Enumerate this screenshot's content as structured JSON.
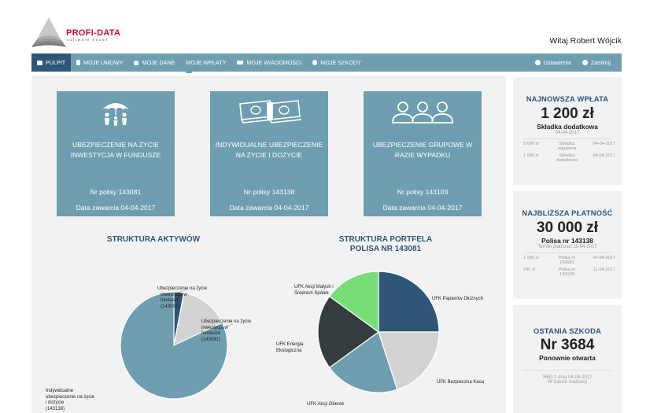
{
  "brand": {
    "name": "PROFI-DATA",
    "tagline": "software house"
  },
  "header": {
    "welcome": "Witaj Robert Wójcik"
  },
  "nav": {
    "items": [
      {
        "label": "PULPIT",
        "icon": "monitor-icon",
        "active": true
      },
      {
        "label": "MOJE UMOWY",
        "icon": "document-icon"
      },
      {
        "label": "MOJE DANE",
        "icon": "user-icon"
      },
      {
        "label": "MOJE WPŁATY",
        "icon": "credit-card-icon"
      },
      {
        "label": "MOJE WIADOMOŚCI",
        "icon": "envelope-icon"
      },
      {
        "label": "MOJE SZKODY",
        "icon": "wheelchair-icon"
      }
    ],
    "settings": "Ustawienia",
    "logout": "Zamknij"
  },
  "cards": [
    {
      "title": "UBEZPIECZENIE NA ŻYCIE INWESTYCJA W FUNDUSZE",
      "policy": "Nr polisy 143081",
      "date": "Data zawarcia 04-04-2017",
      "icon": "family-umbrella-icon"
    },
    {
      "title": "INDYWIDUALNE UBEZPIECZENIE NA ŻYCIE I DOŻYCIE",
      "policy": "Nr polisy 143138",
      "date": "Data zawarcia 04-04-2017",
      "icon": "money-stack-icon"
    },
    {
      "title": "UBEZPIECZENIE GRUPOWE W RAZIE WYPADKU",
      "policy": "Nr polisy 143103",
      "date": "Data zawarcia 04-04-2017",
      "icon": "group-people-icon"
    }
  ],
  "charts": {
    "assets_title": "STRUKTURA AKTYWÓW",
    "portfolio_title_1": "STRUKTURA PORTFELA",
    "portfolio_title_2": "POLISA NR 143081",
    "assets_labels": {
      "a": [
        "Ubezpieczenie na życie",
        "inwestycja w",
        "funduszE",
        "(143081)"
      ],
      "b": [
        "Ubezpieczenie na życie",
        "inwestycja w",
        "fundusze",
        "(143081)"
      ],
      "c": [
        "Indywidualne",
        "ubezpieczenie na życie",
        "i dożycie",
        "(143138)"
      ]
    },
    "portfolio_labels": {
      "small": [
        "UFK Akcji Małych i",
        "Średnich Spółek"
      ],
      "bonds": "UFK Papierów Dłużnych",
      "energy": [
        "UFK Energia",
        "Ekologiczna"
      ],
      "cash": "UFK Bezpieczna Kasa",
      "oberek": "UFK Akcji Oberek"
    }
  },
  "chart_data": [
    {
      "type": "pie",
      "title": "STRUKTURA AKTYWÓW",
      "labels": [
        "Ubezpieczenie na życie inwestycja w funduszE (143081)",
        "Ubezpieczenie na życie inwestycja w fundusze (143081)",
        "Indywidualne ubezpieczenie na życie i dożycie (143138)"
      ],
      "values": [
        3,
        15,
        82
      ],
      "colors": [
        "#2e5677",
        "#d3d3d3",
        "#6e9eb0"
      ]
    },
    {
      "type": "pie",
      "title": "STRUKTURA PORTFELA POLISA NR 143081",
      "labels": [
        "UFK Papierów Dłużnych",
        "UFK Bezpieczna Kasa",
        "UFK Akcji Oberek",
        "UFK Energia Ekologiczna",
        "UFK Akcji Małych i Średnich Spółek"
      ],
      "values": [
        25,
        20,
        20,
        20,
        15
      ],
      "colors": [
        "#2e5677",
        "#d3d3d3",
        "#6e9eb0",
        "#343c3e",
        "#77dd77"
      ]
    }
  ],
  "latest_payment": {
    "title": "NAJNOWSZA WPŁATA",
    "amount": "1 200 zł",
    "type": "Składka dodatkowa",
    "date": "04-04-2017",
    "rows": [
      {
        "amount": "5 600 zł",
        "type": "Składka regularna",
        "date": "04-04-2017"
      },
      {
        "amount": "1 000 zł",
        "type": "Składka dodatkowa",
        "date": "04-04-2017"
      }
    ]
  },
  "next_payment": {
    "title": "NAJBLIŻSZA PŁATNOŚĆ",
    "amount": "30 000 zł",
    "policy": "Polisa nr 143138",
    "due": "Termin płatności 11-04-2017",
    "rows": [
      {
        "amount": "1 000 zł",
        "policy": "Polisa nr 143081",
        "date": "04-04-2017"
      },
      {
        "amount": "240 zł",
        "policy": "Polisa nr 143138",
        "date": "11-04-2017"
      }
    ]
  },
  "last_claim": {
    "title": "OSTANIA SZKODA",
    "number": "Nr 3684",
    "status": "Ponownie otwarta",
    "note1": "3683 z dnia 04-04-2017",
    "note2": "W trakcie realizacji"
  }
}
